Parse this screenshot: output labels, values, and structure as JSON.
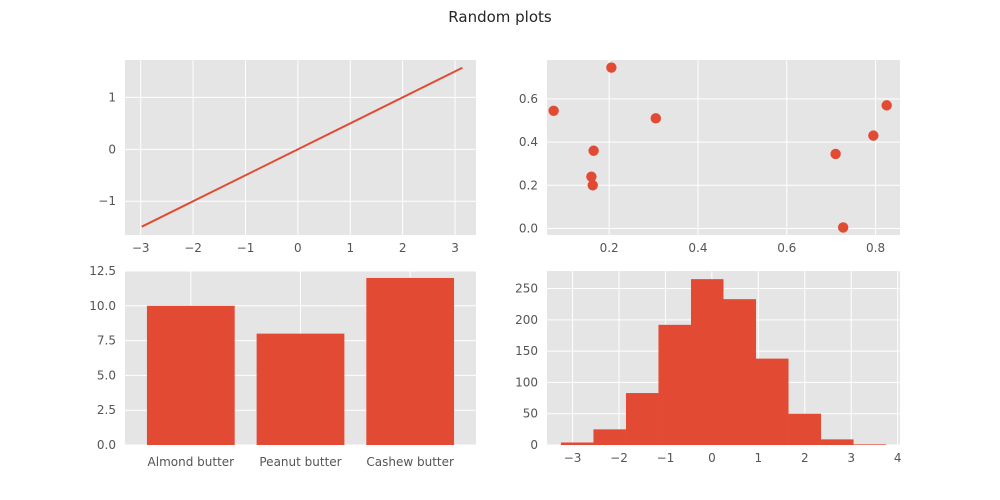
{
  "figure": {
    "title": "Random plots",
    "style": "ggplot",
    "background": "#ffffff",
    "axes_facecolor": "#e5e5e5",
    "grid_color": "#ffffff",
    "mark_color": "#e24a33"
  },
  "chart_data": [
    {
      "type": "line",
      "title": "",
      "xlabel": "",
      "ylabel": "",
      "x": [
        -2.98,
        3.14
      ],
      "y": [
        -1.49,
        1.57
      ],
      "xlim": [
        -3.3,
        3.4
      ],
      "ylim": [
        -1.65,
        1.72
      ],
      "xticks": [
        -3,
        -2,
        -1,
        0,
        1,
        2,
        3
      ],
      "yticks": [
        -1,
        0,
        1
      ],
      "xtick_labels": [
        "−3",
        "−2",
        "−1",
        "0",
        "1",
        "2",
        "3"
      ],
      "ytick_labels": [
        "−1",
        "0",
        "1"
      ],
      "grid": true,
      "color": "#e24a33"
    },
    {
      "type": "scatter",
      "title": "",
      "xlabel": "",
      "ylabel": "",
      "points": [
        {
          "x": 0.075,
          "y": 0.545
        },
        {
          "x": 0.205,
          "y": 0.745
        },
        {
          "x": 0.165,
          "y": 0.36
        },
        {
          "x": 0.16,
          "y": 0.24
        },
        {
          "x": 0.163,
          "y": 0.2
        },
        {
          "x": 0.305,
          "y": 0.51
        },
        {
          "x": 0.71,
          "y": 0.345
        },
        {
          "x": 0.727,
          "y": 0.005
        },
        {
          "x": 0.795,
          "y": 0.43
        },
        {
          "x": 0.825,
          "y": 0.57
        }
      ],
      "xlim": [
        0.06,
        0.855
      ],
      "ylim": [
        -0.03,
        0.78
      ],
      "xticks": [
        0.2,
        0.4,
        0.6,
        0.8
      ],
      "yticks": [
        0.0,
        0.2,
        0.4,
        0.6
      ],
      "xtick_labels": [
        "0.2",
        "0.4",
        "0.6",
        "0.8"
      ],
      "ytick_labels": [
        "0.0",
        "0.2",
        "0.4",
        "0.6"
      ],
      "grid": true,
      "color": "#e24a33"
    },
    {
      "type": "bar",
      "title": "",
      "xlabel": "",
      "ylabel": "",
      "categories": [
        "Almond butter",
        "Peanut butter",
        "Cashew butter"
      ],
      "values": [
        10,
        8,
        12
      ],
      "ylim": [
        0,
        12.5
      ],
      "yticks": [
        0,
        2.5,
        5,
        7.5,
        10,
        12.5
      ],
      "ytick_labels": [
        "0.0",
        "2.5",
        "5.0",
        "7.5",
        "10.0",
        "12.5"
      ],
      "grid": true,
      "color": "#e24a33"
    },
    {
      "type": "bar",
      "subtype": "histogram",
      "title": "",
      "xlabel": "",
      "ylabel": "",
      "bin_edges": [
        -3.25,
        -2.55,
        -1.85,
        -1.15,
        -0.45,
        0.25,
        0.95,
        1.65,
        2.35,
        3.05,
        3.75
      ],
      "counts": [
        4,
        25,
        83,
        192,
        265,
        233,
        138,
        50,
        9,
        1
      ],
      "xlim": [
        -3.55,
        4.05
      ],
      "ylim": [
        0,
        278
      ],
      "xticks": [
        -3,
        -2,
        -1,
        0,
        1,
        2,
        3,
        4
      ],
      "yticks": [
        0,
        50,
        100,
        150,
        200,
        250
      ],
      "xtick_labels": [
        "−3",
        "−2",
        "−1",
        "0",
        "1",
        "2",
        "3",
        "4"
      ],
      "ytick_labels": [
        "0",
        "50",
        "100",
        "150",
        "200",
        "250"
      ],
      "grid": true,
      "color": "#e24a33"
    }
  ]
}
